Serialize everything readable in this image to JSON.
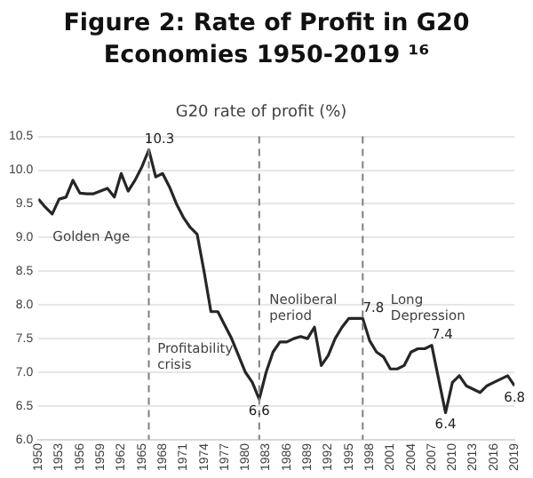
{
  "chart_data": {
    "type": "line",
    "title": "Figure 2: Rate of Profit in G20 Economies 1950-2019 ¹⁶",
    "subtitle": "G20 rate of profit (%)",
    "x": [
      1950,
      1951,
      1952,
      1953,
      1954,
      1955,
      1956,
      1957,
      1958,
      1959,
      1960,
      1961,
      1962,
      1963,
      1964,
      1965,
      1966,
      1967,
      1968,
      1969,
      1970,
      1971,
      1972,
      1973,
      1974,
      1975,
      1976,
      1977,
      1978,
      1979,
      1980,
      1981,
      1982,
      1983,
      1984,
      1985,
      1986,
      1987,
      1988,
      1989,
      1990,
      1991,
      1992,
      1993,
      1994,
      1995,
      1996,
      1997,
      1998,
      1999,
      2000,
      2001,
      2002,
      2003,
      2004,
      2005,
      2006,
      2007,
      2008,
      2009,
      2010,
      2011,
      2012,
      2013,
      2014,
      2015,
      2016,
      2017,
      2018,
      2019
    ],
    "series": [
      {
        "color": "#262626",
        "values": [
          9.57,
          9.45,
          9.35,
          9.57,
          9.6,
          9.85,
          9.66,
          9.65,
          9.65,
          9.69,
          9.73,
          9.6,
          9.95,
          9.69,
          9.85,
          10.05,
          10.3,
          9.9,
          9.95,
          9.75,
          9.5,
          9.3,
          9.15,
          9.05,
          8.5,
          7.9,
          7.9,
          7.7,
          7.5,
          7.25,
          7.0,
          6.85,
          6.6,
          7.0,
          7.3,
          7.45,
          7.45,
          7.5,
          7.53,
          7.5,
          7.67,
          7.1,
          7.25,
          7.5,
          7.67,
          7.8,
          7.8,
          7.8,
          7.47,
          7.3,
          7.23,
          7.05,
          7.05,
          7.1,
          7.3,
          7.35,
          7.35,
          7.4,
          6.9,
          6.4,
          6.85,
          6.95,
          6.8,
          6.75,
          6.7,
          6.8,
          6.85,
          6.9,
          6.95,
          6.8
        ],
        "value_labels": [
          null,
          null,
          null,
          null,
          null,
          null,
          null,
          null,
          null,
          null,
          null,
          null,
          null,
          null,
          null,
          null,
          "10.3",
          null,
          null,
          null,
          null,
          null,
          null,
          null,
          null,
          null,
          null,
          null,
          null,
          null,
          null,
          null,
          "6.6",
          null,
          null,
          null,
          null,
          null,
          null,
          null,
          null,
          null,
          null,
          null,
          null,
          null,
          null,
          "7.8",
          null,
          null,
          null,
          null,
          null,
          null,
          null,
          null,
          null,
          "7.4",
          null,
          "6.4",
          null,
          null,
          null,
          null,
          null,
          null,
          null,
          null,
          null,
          "6.8"
        ]
      }
    ],
    "xlim": [
      1950,
      2019
    ],
    "xticks": [
      1950,
      1953,
      1956,
      1959,
      1962,
      1965,
      1968,
      1971,
      1974,
      1977,
      1980,
      1983,
      1986,
      1989,
      1992,
      1995,
      1998,
      2001,
      2004,
      2007,
      2010,
      2013,
      2016,
      2019
    ],
    "ylim": [
      6.0,
      10.5
    ],
    "yticks": [
      {
        "value": 6,
        "label": "6.0"
      },
      {
        "value": 6.5,
        "label": "6.5"
      },
      {
        "value": 7,
        "label": "7.0"
      },
      {
        "value": 7.5,
        "label": "7.5"
      },
      {
        "value": 8,
        "label": "8.0"
      },
      {
        "value": 8.5,
        "label": "8.5"
      },
      {
        "value": 9,
        "label": "9.0"
      },
      {
        "value": 9.5,
        "label": "9.5"
      },
      {
        "value": 10,
        "label": "10.0"
      },
      {
        "value": 10.5,
        "label": "10.5"
      }
    ],
    "grid": "y",
    "legend": false,
    "marker": "none",
    "line_style": "solid",
    "ref_lines": [
      {
        "axis": "x",
        "value": 1966,
        "color": "#7f7f7f",
        "line_style": "dashed"
      },
      {
        "axis": "x",
        "value": 1982,
        "color": "#7f7f7f",
        "line_style": "dashed"
      },
      {
        "axis": "x",
        "value": 1997,
        "color": "#7f7f7f",
        "line_style": "dashed"
      }
    ],
    "annotations": [
      "Golden Age",
      "Profitability crisis",
      "Neoliberal period",
      "Long Depression"
    ]
  }
}
